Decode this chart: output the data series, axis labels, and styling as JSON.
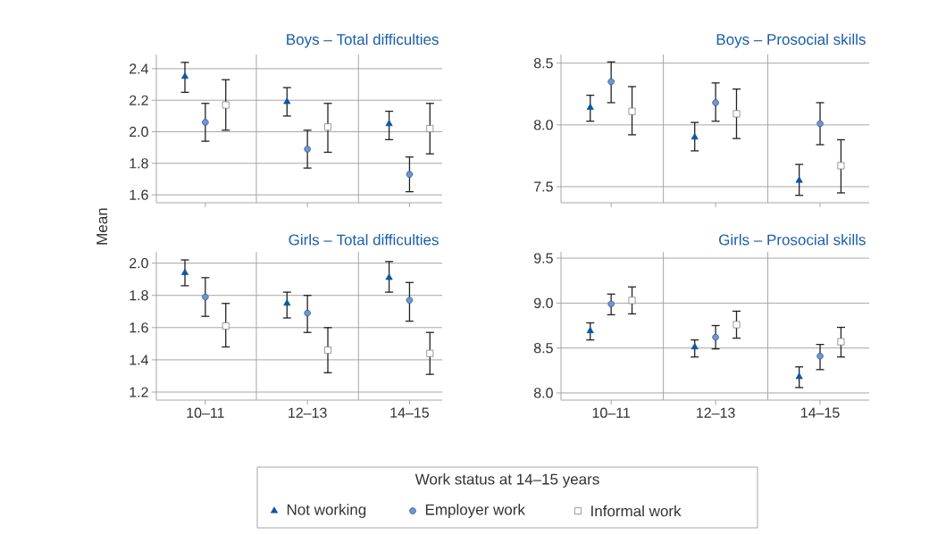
{
  "chart_data": [
    {
      "type": "scatter",
      "title": "Boys – Total difficulties",
      "ylabel": "Mean",
      "categories": [
        null,
        null,
        null
      ],
      "ylim": [
        1.55,
        2.49
      ],
      "yticks": [
        {
          "value": 1.6,
          "label": "1.6"
        },
        {
          "value": 1.8,
          "label": "1.8"
        },
        {
          "value": 2,
          "label": "2.0"
        },
        {
          "value": 2.2,
          "label": "2.2"
        },
        {
          "value": 2.4,
          "label": "2.4"
        }
      ],
      "grid": true,
      "tick_labels": "y",
      "series": [
        {
          "color": "#0b56a4",
          "marker": "triangle",
          "values": [
            2.35,
            2.19,
            2.05
          ],
          "errors": [
            [
              2.25,
              2.44
            ],
            [
              2.1,
              2.28
            ],
            [
              1.95,
              2.13
            ]
          ]
        },
        {
          "color": "#7394cc",
          "marker": "circle",
          "values": [
            2.06,
            1.89,
            1.73
          ],
          "errors": [
            [
              1.94,
              2.18
            ],
            [
              1.77,
              2.01
            ],
            [
              1.62,
              1.84
            ]
          ]
        },
        {
          "color": "#ffffff",
          "marker": "square",
          "values": [
            2.17,
            2.03,
            2.02
          ],
          "errors": [
            [
              2.01,
              2.33
            ],
            [
              1.87,
              2.18
            ],
            [
              1.86,
              2.18
            ]
          ]
        }
      ]
    },
    {
      "type": "scatter",
      "title": "Boys – Prosocial skills",
      "categories": [
        null,
        null,
        null
      ],
      "ylim": [
        7.37,
        8.57
      ],
      "yticks": [
        {
          "value": 7.5,
          "label": "7.5"
        },
        {
          "value": 8,
          "label": "8.0"
        },
        {
          "value": 8.5,
          "label": "8.5"
        }
      ],
      "grid": true,
      "tick_labels": "y",
      "series": [
        {
          "color": "#0b56a4",
          "marker": "triangle",
          "values": [
            8.14,
            7.9,
            7.55
          ],
          "errors": [
            [
              8.03,
              8.24
            ],
            [
              7.79,
              8.02
            ],
            [
              7.43,
              7.68
            ]
          ]
        },
        {
          "color": "#7394cc",
          "marker": "circle",
          "values": [
            8.35,
            8.18,
            8.01
          ],
          "errors": [
            [
              8.18,
              8.51
            ],
            [
              8.03,
              8.34
            ],
            [
              7.84,
              8.18
            ]
          ]
        },
        {
          "color": "#ffffff",
          "marker": "square",
          "values": [
            8.11,
            8.09,
            7.67
          ],
          "errors": [
            [
              7.92,
              8.31
            ],
            [
              7.89,
              8.29
            ],
            [
              7.45,
              7.88
            ]
          ]
        }
      ]
    },
    {
      "type": "scatter",
      "title": "Girls – Total difficulties",
      "categories": [
        "10–11",
        "12–13",
        "14–15"
      ],
      "ylim": [
        1.15,
        2.07
      ],
      "yticks": [
        {
          "value": 1.2,
          "label": "1.2"
        },
        {
          "value": 1.4,
          "label": "1.4"
        },
        {
          "value": 1.6,
          "label": "1.6"
        },
        {
          "value": 1.8,
          "label": "1.8"
        },
        {
          "value": 2,
          "label": "2.0"
        }
      ],
      "grid": true,
      "series": [
        {
          "color": "#0b56a4",
          "marker": "triangle",
          "values": [
            1.94,
            1.75,
            1.91
          ],
          "errors": [
            [
              1.86,
              2.02
            ],
            [
              1.66,
              1.82
            ],
            [
              1.82,
              2.01
            ]
          ]
        },
        {
          "color": "#7394cc",
          "marker": "circle",
          "values": [
            1.79,
            1.69,
            1.77
          ],
          "errors": [
            [
              1.67,
              1.91
            ],
            [
              1.57,
              1.8
            ],
            [
              1.64,
              1.88
            ]
          ]
        },
        {
          "color": "#ffffff",
          "marker": "square",
          "values": [
            1.61,
            1.46,
            1.44
          ],
          "errors": [
            [
              1.48,
              1.75
            ],
            [
              1.32,
              1.6
            ],
            [
              1.31,
              1.57
            ]
          ]
        }
      ]
    },
    {
      "type": "scatter",
      "title": "Girls – Prosocial skills",
      "legend_title": "Work status at 14–15 years",
      "legend": "bottom",
      "categories": [
        "10–11",
        "12–13",
        "14–15"
      ],
      "ylim": [
        7.92,
        9.57
      ],
      "yticks": [
        {
          "value": 8,
          "label": "8.0"
        },
        {
          "value": 8.5,
          "label": "8.5"
        },
        {
          "value": 9,
          "label": "9.0"
        },
        {
          "value": 9.5,
          "label": "9.5"
        }
      ],
      "grid": true,
      "series": [
        {
          "name": "Not working",
          "color": "#0b56a4",
          "marker": "triangle",
          "values": [
            8.69,
            8.51,
            8.18
          ],
          "errors": [
            [
              8.59,
              8.78
            ],
            [
              8.4,
              8.59
            ],
            [
              8.06,
              8.29
            ]
          ]
        },
        {
          "name": "Employer work",
          "color": "#7394cc",
          "marker": "circle",
          "values": [
            8.99,
            8.62,
            8.41
          ],
          "errors": [
            [
              8.87,
              9.1
            ],
            [
              8.49,
              8.75
            ],
            [
              8.26,
              8.54
            ]
          ]
        },
        {
          "name": "Informal work",
          "color": "#ffffff",
          "marker": "square",
          "values": [
            9.03,
            8.76,
            8.57
          ],
          "errors": [
            [
              8.88,
              9.18
            ],
            [
              8.61,
              8.91
            ],
            [
              8.4,
              8.73
            ]
          ]
        }
      ]
    }
  ]
}
